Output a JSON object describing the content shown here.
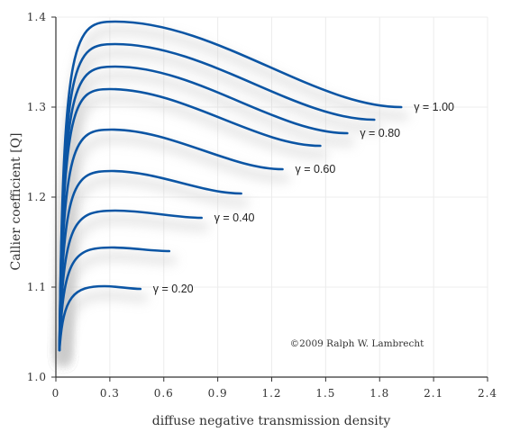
{
  "chart_data": {
    "type": "line",
    "xlabel": "diffuse negative transmission density",
    "ylabel": "Callier coefficient   [Q]",
    "xlim": [
      0,
      2.4
    ],
    "ylim": [
      1.0,
      1.4
    ],
    "x_ticks": [
      "0",
      "0.3",
      "0.6",
      "0.9",
      "1.2",
      "1.5",
      "1.8",
      "2.1",
      "2.4"
    ],
    "y_ticks": [
      "1.0",
      "1.1",
      "1.2",
      "1.3",
      "1.4"
    ],
    "x_tick_values": [
      0,
      0.3,
      0.6,
      0.9,
      1.2,
      1.5,
      1.8,
      2.1,
      2.4
    ],
    "y_tick_values": [
      1.0,
      1.1,
      1.2,
      1.3,
      1.4
    ],
    "grid": true,
    "line_color": "#0b55a4",
    "annotation": "©2009   Ralph W. Lambrecht",
    "series": [
      {
        "label": "γ = 0.20",
        "peak_x": 0.27,
        "peak_y": 1.101,
        "end_x": 0.47,
        "end_y": 1.098
      },
      {
        "label": "",
        "peak_x": 0.31,
        "peak_y": 1.144,
        "end_x": 0.63,
        "end_y": 1.14
      },
      {
        "label": "γ = 0.40",
        "peak_x": 0.33,
        "peak_y": 1.185,
        "end_x": 0.81,
        "end_y": 1.177
      },
      {
        "label": "",
        "peak_x": 0.31,
        "peak_y": 1.229,
        "end_x": 1.03,
        "end_y": 1.204
      },
      {
        "label": "γ = 0.60",
        "peak_x": 0.31,
        "peak_y": 1.275,
        "end_x": 1.26,
        "end_y": 1.231
      },
      {
        "label": "",
        "peak_x": 0.3,
        "peak_y": 1.32,
        "end_x": 1.47,
        "end_y": 1.257
      },
      {
        "label": "γ = 0.80",
        "peak_x": 0.33,
        "peak_y": 1.345,
        "end_x": 1.62,
        "end_y": 1.271
      },
      {
        "label": "",
        "peak_x": 0.33,
        "peak_y": 1.37,
        "end_x": 1.77,
        "end_y": 1.286
      },
      {
        "label": "γ = 1.00",
        "peak_x": 0.33,
        "peak_y": 1.395,
        "end_x": 1.92,
        "end_y": 1.3
      }
    ]
  }
}
